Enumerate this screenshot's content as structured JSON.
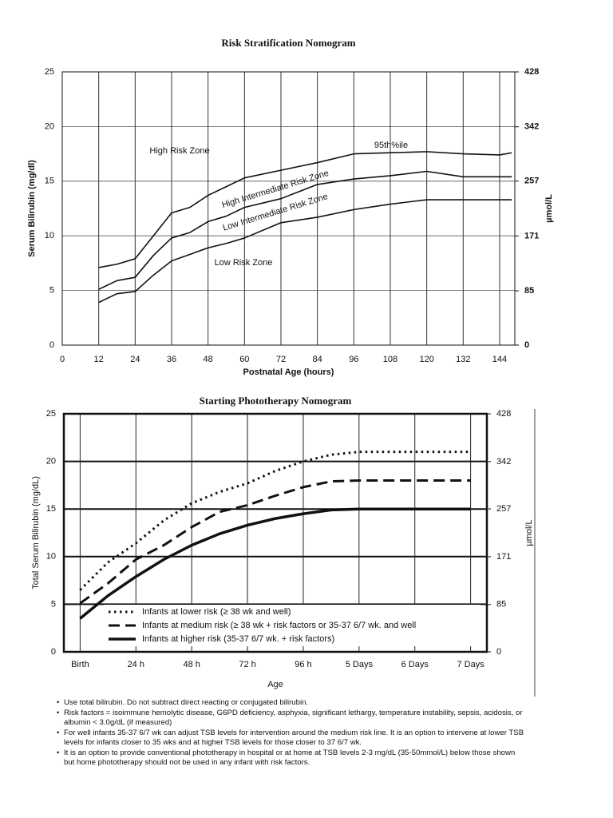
{
  "chart_data": [
    {
      "type": "line",
      "title": "Risk Stratification Nomogram",
      "x_label": "Postnatal Age (hours)",
      "y_label": "Serum Bilirubin (mg/dl)",
      "y2_label": "µmol/L",
      "x": [
        12,
        18,
        24,
        30,
        36,
        42,
        48,
        54,
        60,
        72,
        84,
        96,
        108,
        120,
        132,
        144,
        148
      ],
      "xlim": [
        0,
        149
      ],
      "xticks": [
        0,
        12,
        24,
        36,
        48,
        60,
        72,
        84,
        96,
        108,
        120,
        132,
        144
      ],
      "ylim": [
        0,
        25
      ],
      "yticks": [
        0,
        5,
        10,
        15,
        20,
        25
      ],
      "y2lim": [
        0,
        428
      ],
      "y2ticks": [
        0,
        85,
        171,
        257,
        342,
        428
      ],
      "grid": true,
      "annotations": [
        "High Risk Zone",
        "95th%ile",
        "High Intermediate Risk Zone",
        "Low Intermediate Risk Zone",
        "Low Risk Zone"
      ],
      "series": [
        {
          "color": "#111111",
          "width": 1.6,
          "dash": "solid",
          "values": [
            7.1,
            7.4,
            7.9,
            10.0,
            12.1,
            12.6,
            13.7,
            14.5,
            15.3,
            16.0,
            16.7,
            17.5,
            17.6,
            17.7,
            17.5,
            17.4,
            17.6
          ]
        },
        {
          "color": "#111111",
          "width": 1.6,
          "dash": "solid",
          "values": [
            5.1,
            5.9,
            6.2,
            8.2,
            9.8,
            10.3,
            11.3,
            11.8,
            12.6,
            13.4,
            14.7,
            15.2,
            15.5,
            15.9,
            15.4,
            15.4,
            15.4
          ]
        },
        {
          "color": "#111111",
          "width": 1.6,
          "dash": "solid",
          "values": [
            3.9,
            4.7,
            4.9,
            6.4,
            7.7,
            8.3,
            8.9,
            9.3,
            9.8,
            11.2,
            11.7,
            12.4,
            12.9,
            13.3,
            13.3,
            13.3,
            13.3
          ]
        }
      ]
    },
    {
      "type": "line",
      "title": "Starting Phototherapy Nomogram",
      "x_label": "Age",
      "y_label": "Total Serum Bilirubin (mg/dL)",
      "y2_label": "µmol/L",
      "x": [
        0,
        12,
        24,
        36,
        48,
        60,
        72,
        84,
        96,
        108,
        120,
        132,
        144,
        156,
        168
      ],
      "xlim": [
        -7,
        175
      ],
      "xticks": [
        {
          "value": 0,
          "label": "Birth"
        },
        {
          "value": 24,
          "label": "24 h"
        },
        {
          "value": 48,
          "label": "48 h"
        },
        {
          "value": 72,
          "label": "72 h"
        },
        {
          "value": 96,
          "label": "96 h"
        },
        {
          "value": 120,
          "label": "5 Days"
        },
        {
          "value": 144,
          "label": "6 Days"
        },
        {
          "value": 168,
          "label": "7 Days"
        }
      ],
      "ylim": [
        0,
        25
      ],
      "yticks": [
        0,
        5,
        10,
        15,
        20,
        25
      ],
      "y2lim": [
        0,
        428
      ],
      "y2ticks": [
        0,
        85,
        171,
        257,
        342,
        428
      ],
      "grid": true,
      "legend": "bottom",
      "series": [
        {
          "name": "Infants at lower risk (≥ 38 wk and well)",
          "color": "#111111",
          "width": 3,
          "dash": "dotted",
          "values": [
            6.5,
            9.4,
            11.4,
            13.8,
            15.6,
            16.8,
            17.7,
            19.0,
            20.0,
            20.7,
            21,
            21,
            21,
            21,
            21
          ]
        },
        {
          "name": "Infants at medium risk (≥ 38 wk + risk factors or 35-37 6/7 wk. and well",
          "color": "#111111",
          "width": 3,
          "dash": "dashed",
          "values": [
            5.1,
            7.2,
            9.7,
            11.2,
            13.1,
            14.7,
            15.4,
            16.4,
            17.3,
            17.9,
            18,
            18,
            18,
            18,
            18
          ]
        },
        {
          "name": "Infants at higher risk (35-37 6/7 wk. + risk factors)",
          "color": "#111111",
          "width": 3.5,
          "dash": "solid",
          "values": [
            3.5,
            5.9,
            7.9,
            9.7,
            11.2,
            12.4,
            13.3,
            14.0,
            14.5,
            14.9,
            15,
            15,
            15,
            15,
            15
          ]
        }
      ]
    }
  ],
  "notes": [
    "Use total bilirubin.  Do not subtract direct reacting or conjugated bilirubin.",
    "Risk factors = isoimmune hemolytic disease, G6PD deficiency, asphyxia, significant lethargy, temperature instability, sepsis, acidosis, or albumin < 3.0g/dL (if measured)",
    "For well infants 35-37 6/7 wk can adjust TSB levels for intervention around the medium risk line.  It is an option to intervene at lower TSB levels for infants closer to 35 wks and at higher TSB levels for those closer to 37 6/7 wk.",
    "It is an option to provide conventional phototherapy in hospital or at home at TSB levels 2-3 mg/dL (35-50mmol/L) below those shown but home phototherapy should not be used in any infant with risk factors."
  ]
}
